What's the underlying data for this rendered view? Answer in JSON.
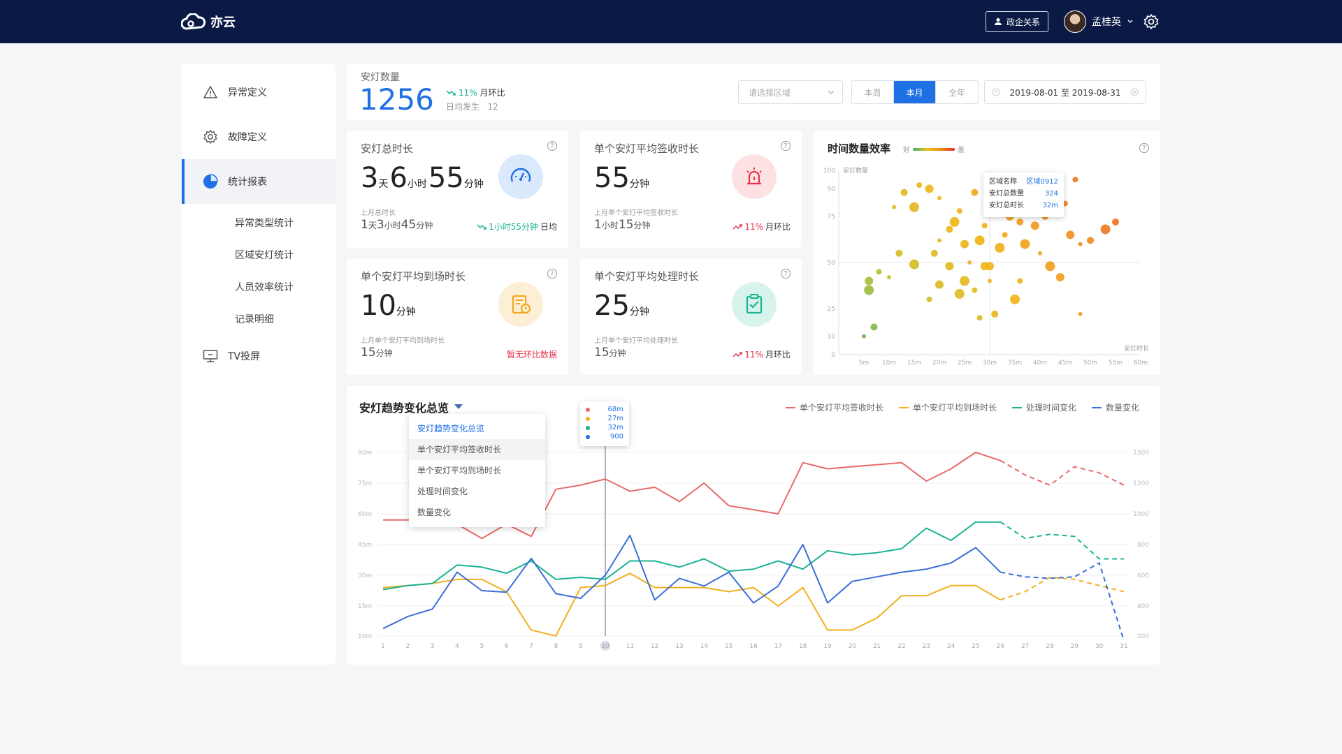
{
  "header": {
    "logo_text": "亦云",
    "gov_button_label": "政企关系",
    "user_name": "孟桂英"
  },
  "sidebar": {
    "items": [
      {
        "label": "异常定义",
        "icon": "warning-icon"
      },
      {
        "label": "故障定义",
        "icon": "gear-icon"
      },
      {
        "label": "统计报表",
        "icon": "pie-chart-icon",
        "active": true
      },
      {
        "label": "TV投屏",
        "icon": "monitor-icon"
      }
    ],
    "sub_items": [
      "异常类型统计",
      "区域安灯统计",
      "人员效率统计",
      "记录明细"
    ]
  },
  "summary": {
    "label": "安灯数量",
    "value": "1256",
    "trend_pct": "11%",
    "trend_label": "月环比",
    "daily_label": "日均发生",
    "daily_value": "12",
    "region_placeholder": "请选择区域",
    "periods": [
      "本周",
      "本月",
      "全年"
    ],
    "active_period": "本月",
    "date_range": "2019-08-01 至 2019-08-31"
  },
  "metrics": {
    "total": {
      "title": "安灯总时长",
      "value": {
        "d": "3",
        "d_unit": "天",
        "h": "6",
        "h_unit": "小时",
        "m": "55",
        "m_unit": "分钟"
      },
      "prev_label": "上月总时长",
      "prev": {
        "d": "1",
        "d_unit": "天",
        "h": "3",
        "h_unit": "小时",
        "m": "45",
        "m_unit": "分钟"
      },
      "trend": "1小时55分钟",
      "trend_label": "日均",
      "trend_color": "#1ab394"
    },
    "sign": {
      "title": "单个安灯平均签收时长",
      "value": "55",
      "unit": "分钟",
      "prev_label": "上月单个安灯平均签收时长",
      "prev": {
        "h": "1",
        "h_unit": "小时",
        "m": "15",
        "m_unit": "分钟"
      },
      "trend": "11%",
      "trend_label": "月环比",
      "trend_color": "#e8334a"
    },
    "arrive": {
      "title": "单个安灯平均到场时长",
      "value": "10",
      "unit": "分钟",
      "prev_label": "上月单个安灯平均到场时长",
      "prev": {
        "m": "15",
        "m_unit": "分钟"
      },
      "trend_text": "暂无环比数据",
      "trend_color": "#e8334a"
    },
    "handle": {
      "title": "单个安灯平均处理时长",
      "value": "25",
      "unit": "分钟",
      "prev_label": "上月单个安灯平均处理时长",
      "prev": {
        "m": "15",
        "m_unit": "分钟"
      },
      "trend": "11%",
      "trend_label": "月环比",
      "trend_color": "#e8334a"
    }
  },
  "scatter": {
    "title": "时间数量效率",
    "legend_good": "好",
    "legend_bad": "差",
    "ylabel": "安灯数量",
    "xlabel": "安灯时长",
    "y_ticks": [
      "100",
      "90",
      "75",
      "50",
      "25",
      "10",
      "0"
    ],
    "x_ticks": [
      "5m",
      "10m",
      "15m",
      "20m",
      "25m",
      "30m",
      "35m",
      "40m",
      "45m",
      "50m",
      "55m",
      "60m"
    ],
    "tooltip": {
      "rows": [
        {
          "k": "区域名称",
          "v": "区域0912"
        },
        {
          "k": "安灯总数量",
          "v": "324"
        },
        {
          "k": "安灯总时长",
          "v": "32m"
        }
      ]
    }
  },
  "trend": {
    "title": "安灯趋势变化总览",
    "legend": [
      {
        "name": "单个安灯平均签收时长",
        "color": "#e86a6a"
      },
      {
        "name": "单个安灯平均到场时长",
        "color": "#f2b01e"
      },
      {
        "name": "处理时间变化",
        "color": "#1ab394"
      },
      {
        "name": "数量变化",
        "color": "#3a6fd8"
      }
    ],
    "dropdown": [
      "安灯趋势变化总览",
      "单个安灯平均签收时长",
      "单个安灯平均到场时长",
      "处理时间变化",
      "数量变化"
    ],
    "tooltip": [
      {
        "v": "68m",
        "color": "#e86a6a"
      },
      {
        "v": "27m",
        "color": "#f2b01e"
      },
      {
        "v": "32m",
        "color": "#1ab394"
      },
      {
        "v": "900",
        "color": "#1f6fe5"
      }
    ],
    "y_left_ticks": [
      "90m",
      "75m",
      "60m",
      "45m",
      "30m",
      "15m",
      "10m"
    ],
    "y_right_ticks": [
      "1500",
      "1200",
      "1000",
      "800",
      "600",
      "400",
      "200"
    ]
  },
  "chart_data": [
    {
      "type": "scatter",
      "title": "时间数量效率",
      "xlabel": "安灯时长",
      "ylabel": "安灯数量",
      "xlim": [
        0,
        60
      ],
      "ylim": [
        0,
        100
      ],
      "points": [
        [
          5,
          10
        ],
        [
          7,
          15
        ],
        [
          6,
          35
        ],
        [
          8,
          45
        ],
        [
          6,
          40
        ],
        [
          10,
          42
        ],
        [
          12,
          55
        ],
        [
          15,
          49
        ],
        [
          18,
          30
        ],
        [
          20,
          38
        ],
        [
          11,
          80
        ],
        [
          13,
          88
        ],
        [
          15,
          80
        ],
        [
          16,
          92
        ],
        [
          18,
          90
        ],
        [
          20,
          85
        ],
        [
          22,
          68
        ],
        [
          23,
          72
        ],
        [
          24,
          78
        ],
        [
          25,
          60
        ],
        [
          26,
          50
        ],
        [
          27,
          88
        ],
        [
          28,
          62
        ],
        [
          29,
          70
        ],
        [
          30,
          48
        ],
        [
          30,
          40
        ],
        [
          31,
          22
        ],
        [
          32,
          58
        ],
        [
          33,
          65
        ],
        [
          34,
          75
        ],
        [
          35,
          80
        ],
        [
          36,
          72
        ],
        [
          37,
          60
        ],
        [
          38,
          95
        ],
        [
          39,
          70
        ],
        [
          40,
          55
        ],
        [
          41,
          75
        ],
        [
          42,
          48
        ],
        [
          45,
          82
        ],
        [
          46,
          65
        ],
        [
          48,
          60
        ],
        [
          50,
          62
        ],
        [
          25,
          40
        ],
        [
          27,
          35
        ],
        [
          29,
          48
        ],
        [
          20,
          62
        ],
        [
          19,
          55
        ],
        [
          35,
          30
        ],
        [
          36,
          40
        ],
        [
          44,
          42
        ],
        [
          48,
          22
        ],
        [
          55,
          72
        ],
        [
          53,
          68
        ],
        [
          47,
          95
        ],
        [
          43,
          90
        ],
        [
          32,
          83
        ],
        [
          30,
          91
        ],
        [
          24,
          33
        ],
        [
          28,
          20
        ],
        [
          22,
          48
        ]
      ],
      "tooltip": {
        "region": "区域0912",
        "count": 324,
        "duration": "32m"
      }
    },
    {
      "type": "line",
      "title": "安灯趋势变化总览",
      "x": [
        1,
        2,
        3,
        4,
        5,
        6,
        7,
        8,
        9,
        10,
        11,
        12,
        13,
        14,
        15,
        16,
        17,
        18,
        19,
        20,
        21,
        22,
        23,
        24,
        25,
        26,
        27,
        28,
        29,
        30,
        31
      ],
      "forecast_from": 26,
      "series": [
        {
          "name": "单个安灯平均签收时长",
          "axis": "left",
          "values": [
            57,
            57,
            58,
            55,
            48,
            55,
            49,
            72,
            74,
            77,
            71,
            73,
            66,
            75,
            64,
            62,
            60,
            85,
            82,
            83,
            84,
            85,
            76,
            82,
            90,
            86,
            79,
            74,
            83,
            80,
            74
          ]
        },
        {
          "name": "单个安灯平均到场时长",
          "axis": "left",
          "values": [
            24,
            25,
            26,
            28,
            28,
            22,
            11,
            10,
            24,
            25,
            31,
            24,
            24,
            24,
            22,
            24,
            15,
            24,
            11,
            11,
            13,
            20,
            20,
            25,
            25,
            18,
            22,
            29,
            28,
            25,
            22
          ]
        },
        {
          "name": "处理时间变化",
          "axis": "left",
          "values": [
            23,
            25,
            26,
            35,
            34,
            31,
            37,
            28,
            29,
            28,
            37,
            37,
            34,
            38,
            32,
            33,
            37,
            33,
            42,
            40,
            41,
            43,
            53,
            47,
            56,
            56,
            48,
            50,
            49,
            38,
            38
          ]
        },
        {
          "name": "数量变化",
          "axis": "right",
          "values": [
            250,
            330,
            380,
            620,
            500,
            490,
            710,
            480,
            450,
            600,
            860,
            440,
            580,
            530,
            620,
            420,
            530,
            800,
            420,
            560,
            590,
            620,
            640,
            680,
            780,
            620,
            590,
            580,
            590,
            680,
            170
          ]
        }
      ]
    }
  ]
}
